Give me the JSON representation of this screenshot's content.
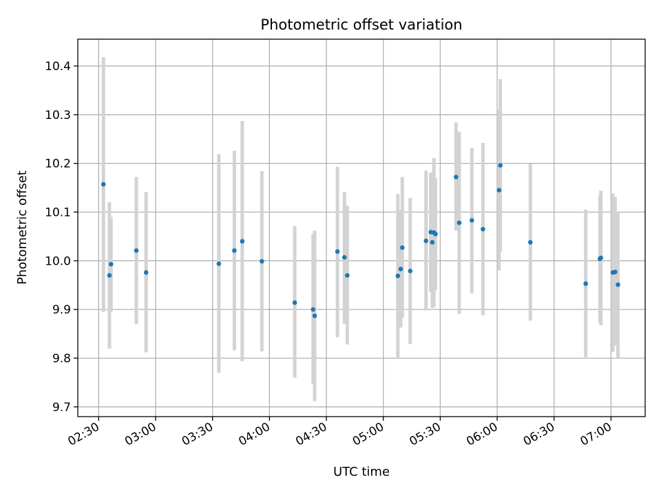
{
  "chart_data": {
    "type": "scatter",
    "title": "Photometric offset variation",
    "xlabel": "UTC time",
    "ylabel": "Photometric offset",
    "xlim": [
      "02:19",
      "07:18"
    ],
    "ylim": [
      9.68,
      10.455
    ],
    "grid": true,
    "x_ticks": [
      "02:30",
      "03:00",
      "03:30",
      "04:00",
      "04:30",
      "05:00",
      "05:30",
      "06:00",
      "06:30",
      "07:00"
    ],
    "y_ticks": [
      "9.7",
      "9.8",
      "9.9",
      "10.0",
      "10.1",
      "10.2",
      "10.3",
      "10.4"
    ],
    "marker_color": "#1f77b4",
    "errorbar_color": "#d3d3d3",
    "points": [
      {
        "t": "02:32:30",
        "y": 10.157,
        "lo": 9.895,
        "hi": 10.418
      },
      {
        "t": "02:35:40",
        "y": 9.97,
        "lo": 9.82,
        "hi": 10.12
      },
      {
        "t": "02:36:30",
        "y": 9.993,
        "lo": 9.895,
        "hi": 10.09
      },
      {
        "t": "02:49:50",
        "y": 10.021,
        "lo": 9.87,
        "hi": 10.172
      },
      {
        "t": "02:55:00",
        "y": 9.976,
        "lo": 9.812,
        "hi": 10.141
      },
      {
        "t": "03:33:20",
        "y": 9.994,
        "lo": 9.77,
        "hi": 10.219
      },
      {
        "t": "03:41:30",
        "y": 10.021,
        "lo": 9.816,
        "hi": 10.226
      },
      {
        "t": "03:45:40",
        "y": 10.04,
        "lo": 9.794,
        "hi": 10.287
      },
      {
        "t": "03:56:00",
        "y": 9.999,
        "lo": 9.814,
        "hi": 10.184
      },
      {
        "t": "04:13:20",
        "y": 9.914,
        "lo": 9.76,
        "hi": 10.071
      },
      {
        "t": "04:23:00",
        "y": 9.9,
        "lo": 9.746,
        "hi": 10.055
      },
      {
        "t": "04:23:50",
        "y": 9.887,
        "lo": 9.712,
        "hi": 10.062
      },
      {
        "t": "04:35:50",
        "y": 10.019,
        "lo": 9.843,
        "hi": 10.193
      },
      {
        "t": "04:39:30",
        "y": 10.007,
        "lo": 9.871,
        "hi": 10.141
      },
      {
        "t": "04:41:00",
        "y": 9.97,
        "lo": 9.828,
        "hi": 10.113
      },
      {
        "t": "05:07:40",
        "y": 9.969,
        "lo": 9.8,
        "hi": 10.137
      },
      {
        "t": "05:09:10",
        "y": 9.983,
        "lo": 9.863,
        "hi": 10.104
      },
      {
        "t": "05:10:00",
        "y": 10.027,
        "lo": 9.883,
        "hi": 10.172
      },
      {
        "t": "05:14:10",
        "y": 9.979,
        "lo": 9.829,
        "hi": 10.129
      },
      {
        "t": "05:22:30",
        "y": 10.041,
        "lo": 9.898,
        "hi": 10.185
      },
      {
        "t": "05:25:00",
        "y": 10.059,
        "lo": 9.936,
        "hi": 10.181
      },
      {
        "t": "05:25:50",
        "y": 10.038,
        "lo": 9.903,
        "hi": 10.174
      },
      {
        "t": "05:26:40",
        "y": 10.058,
        "lo": 9.905,
        "hi": 10.211
      },
      {
        "t": "05:27:30",
        "y": 10.055,
        "lo": 9.94,
        "hi": 10.17
      },
      {
        "t": "05:38:20",
        "y": 10.172,
        "lo": 10.062,
        "hi": 10.284
      },
      {
        "t": "05:40:00",
        "y": 10.078,
        "lo": 9.891,
        "hi": 10.265
      },
      {
        "t": "05:46:40",
        "y": 10.083,
        "lo": 9.933,
        "hi": 10.232
      },
      {
        "t": "05:52:30",
        "y": 10.065,
        "lo": 9.888,
        "hi": 10.242
      },
      {
        "t": "06:01:00",
        "y": 10.145,
        "lo": 9.98,
        "hi": 10.31
      },
      {
        "t": "06:01:40",
        "y": 10.196,
        "lo": 10.019,
        "hi": 10.373
      },
      {
        "t": "06:17:30",
        "y": 10.038,
        "lo": 9.877,
        "hi": 10.199
      },
      {
        "t": "06:46:40",
        "y": 9.953,
        "lo": 9.802,
        "hi": 10.105
      },
      {
        "t": "06:54:10",
        "y": 10.004,
        "lo": 9.873,
        "hi": 10.134
      },
      {
        "t": "06:54:40",
        "y": 10.006,
        "lo": 9.868,
        "hi": 10.144
      },
      {
        "t": "07:01:00",
        "y": 9.976,
        "lo": 9.813,
        "hi": 10.138
      },
      {
        "t": "07:02:10",
        "y": 9.977,
        "lo": 9.826,
        "hi": 10.131
      },
      {
        "t": "07:03:40",
        "y": 9.951,
        "lo": 9.801,
        "hi": 10.101
      }
    ]
  }
}
